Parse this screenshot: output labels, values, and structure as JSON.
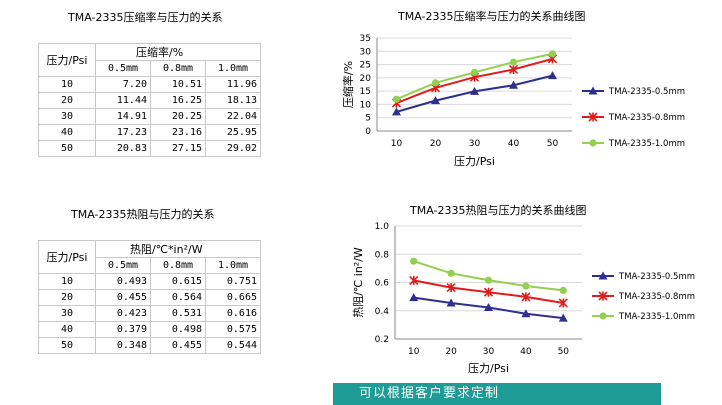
{
  "table1": {
    "title": "TMA-2335压缩率与压力的关系",
    "row_header": "压力/Psi",
    "value_header": "压缩率/%",
    "columns": [
      "0.5mm",
      "0.8mm",
      "1.0mm"
    ],
    "rows": [
      {
        "p": "10",
        "v": [
          "7.20",
          "10.51",
          "11.96"
        ]
      },
      {
        "p": "20",
        "v": [
          "11.44",
          "16.25",
          "18.13"
        ]
      },
      {
        "p": "30",
        "v": [
          "14.91",
          "20.25",
          "22.04"
        ]
      },
      {
        "p": "40",
        "v": [
          "17.23",
          "23.16",
          "25.95"
        ]
      },
      {
        "p": "50",
        "v": [
          "20.83",
          "27.15",
          "29.02"
        ]
      }
    ]
  },
  "table2": {
    "title": "TMA-2335热阻与压力的关系",
    "row_header": "压力/Psi",
    "value_header": "热阻/℃*in²/W",
    "columns": [
      "0.5mm",
      "0.8mm",
      "1.0mm"
    ],
    "rows": [
      {
        "p": "10",
        "v": [
          "0.493",
          "0.615",
          "0.751"
        ]
      },
      {
        "p": "20",
        "v": [
          "0.455",
          "0.564",
          "0.665"
        ]
      },
      {
        "p": "30",
        "v": [
          "0.423",
          "0.531",
          "0.616"
        ]
      },
      {
        "p": "40",
        "v": [
          "0.379",
          "0.498",
          "0.575"
        ]
      },
      {
        "p": "50",
        "v": [
          "0.348",
          "0.455",
          "0.544"
        ]
      }
    ]
  },
  "colors": {
    "s05": "#2e2e8f",
    "s08": "#e31a1c",
    "s10": "#92d050",
    "banner": "#1f9b96",
    "grid": "#d9d9d9",
    "border": "#c8c8c8"
  },
  "chart_data": [
    {
      "type": "line",
      "title": "TMA-2335压缩率与压力的关系曲线图",
      "xlabel": "压力/Psi",
      "ylabel": "压缩率/%",
      "x": [
        10,
        20,
        30,
        40,
        50
      ],
      "ylim": [
        0,
        35
      ],
      "yticks": [
        "0",
        "5",
        "10",
        "15",
        "20",
        "25",
        "30",
        "35"
      ],
      "grid": true,
      "legend": "right",
      "series": [
        {
          "name": "TMA-2335-0.5mm",
          "values": [
            7.2,
            11.44,
            14.91,
            17.23,
            20.83
          ],
          "color": "#2e2e8f",
          "marker": "triangle"
        },
        {
          "name": "TMA-2335-0.8mm",
          "values": [
            10.51,
            16.25,
            20.25,
            23.16,
            27.15
          ],
          "color": "#e31a1c",
          "marker": "star"
        },
        {
          "name": "TMA-2335-1.0mm",
          "values": [
            11.96,
            18.13,
            22.04,
            25.95,
            29.02
          ],
          "color": "#92d050",
          "marker": "circle"
        }
      ]
    },
    {
      "type": "line",
      "title": "TMA-2335热阻与压力的关系曲线图",
      "xlabel": "压力/Psi",
      "ylabel": "热阻/℃ in²/W",
      "x": [
        10,
        20,
        30,
        40,
        50
      ],
      "ylim": [
        0.2,
        1.0
      ],
      "yticks": [
        "0.2",
        "0.4",
        "0.6",
        "0.8",
        "1.0"
      ],
      "grid": true,
      "legend": "right",
      "series": [
        {
          "name": "TMA-2335-0.5mm",
          "values": [
            0.493,
            0.455,
            0.423,
            0.379,
            0.348
          ],
          "color": "#2e2e8f",
          "marker": "triangle"
        },
        {
          "name": "TMA-2335-0.8mm",
          "values": [
            0.615,
            0.564,
            0.531,
            0.498,
            0.455
          ],
          "color": "#e31a1c",
          "marker": "star"
        },
        {
          "name": "TMA-2335-1.0mm",
          "values": [
            0.751,
            0.665,
            0.616,
            0.575,
            0.544
          ],
          "color": "#92d050",
          "marker": "circle"
        }
      ]
    }
  ],
  "banner": {
    "text": "可以根据客户要求定制"
  }
}
